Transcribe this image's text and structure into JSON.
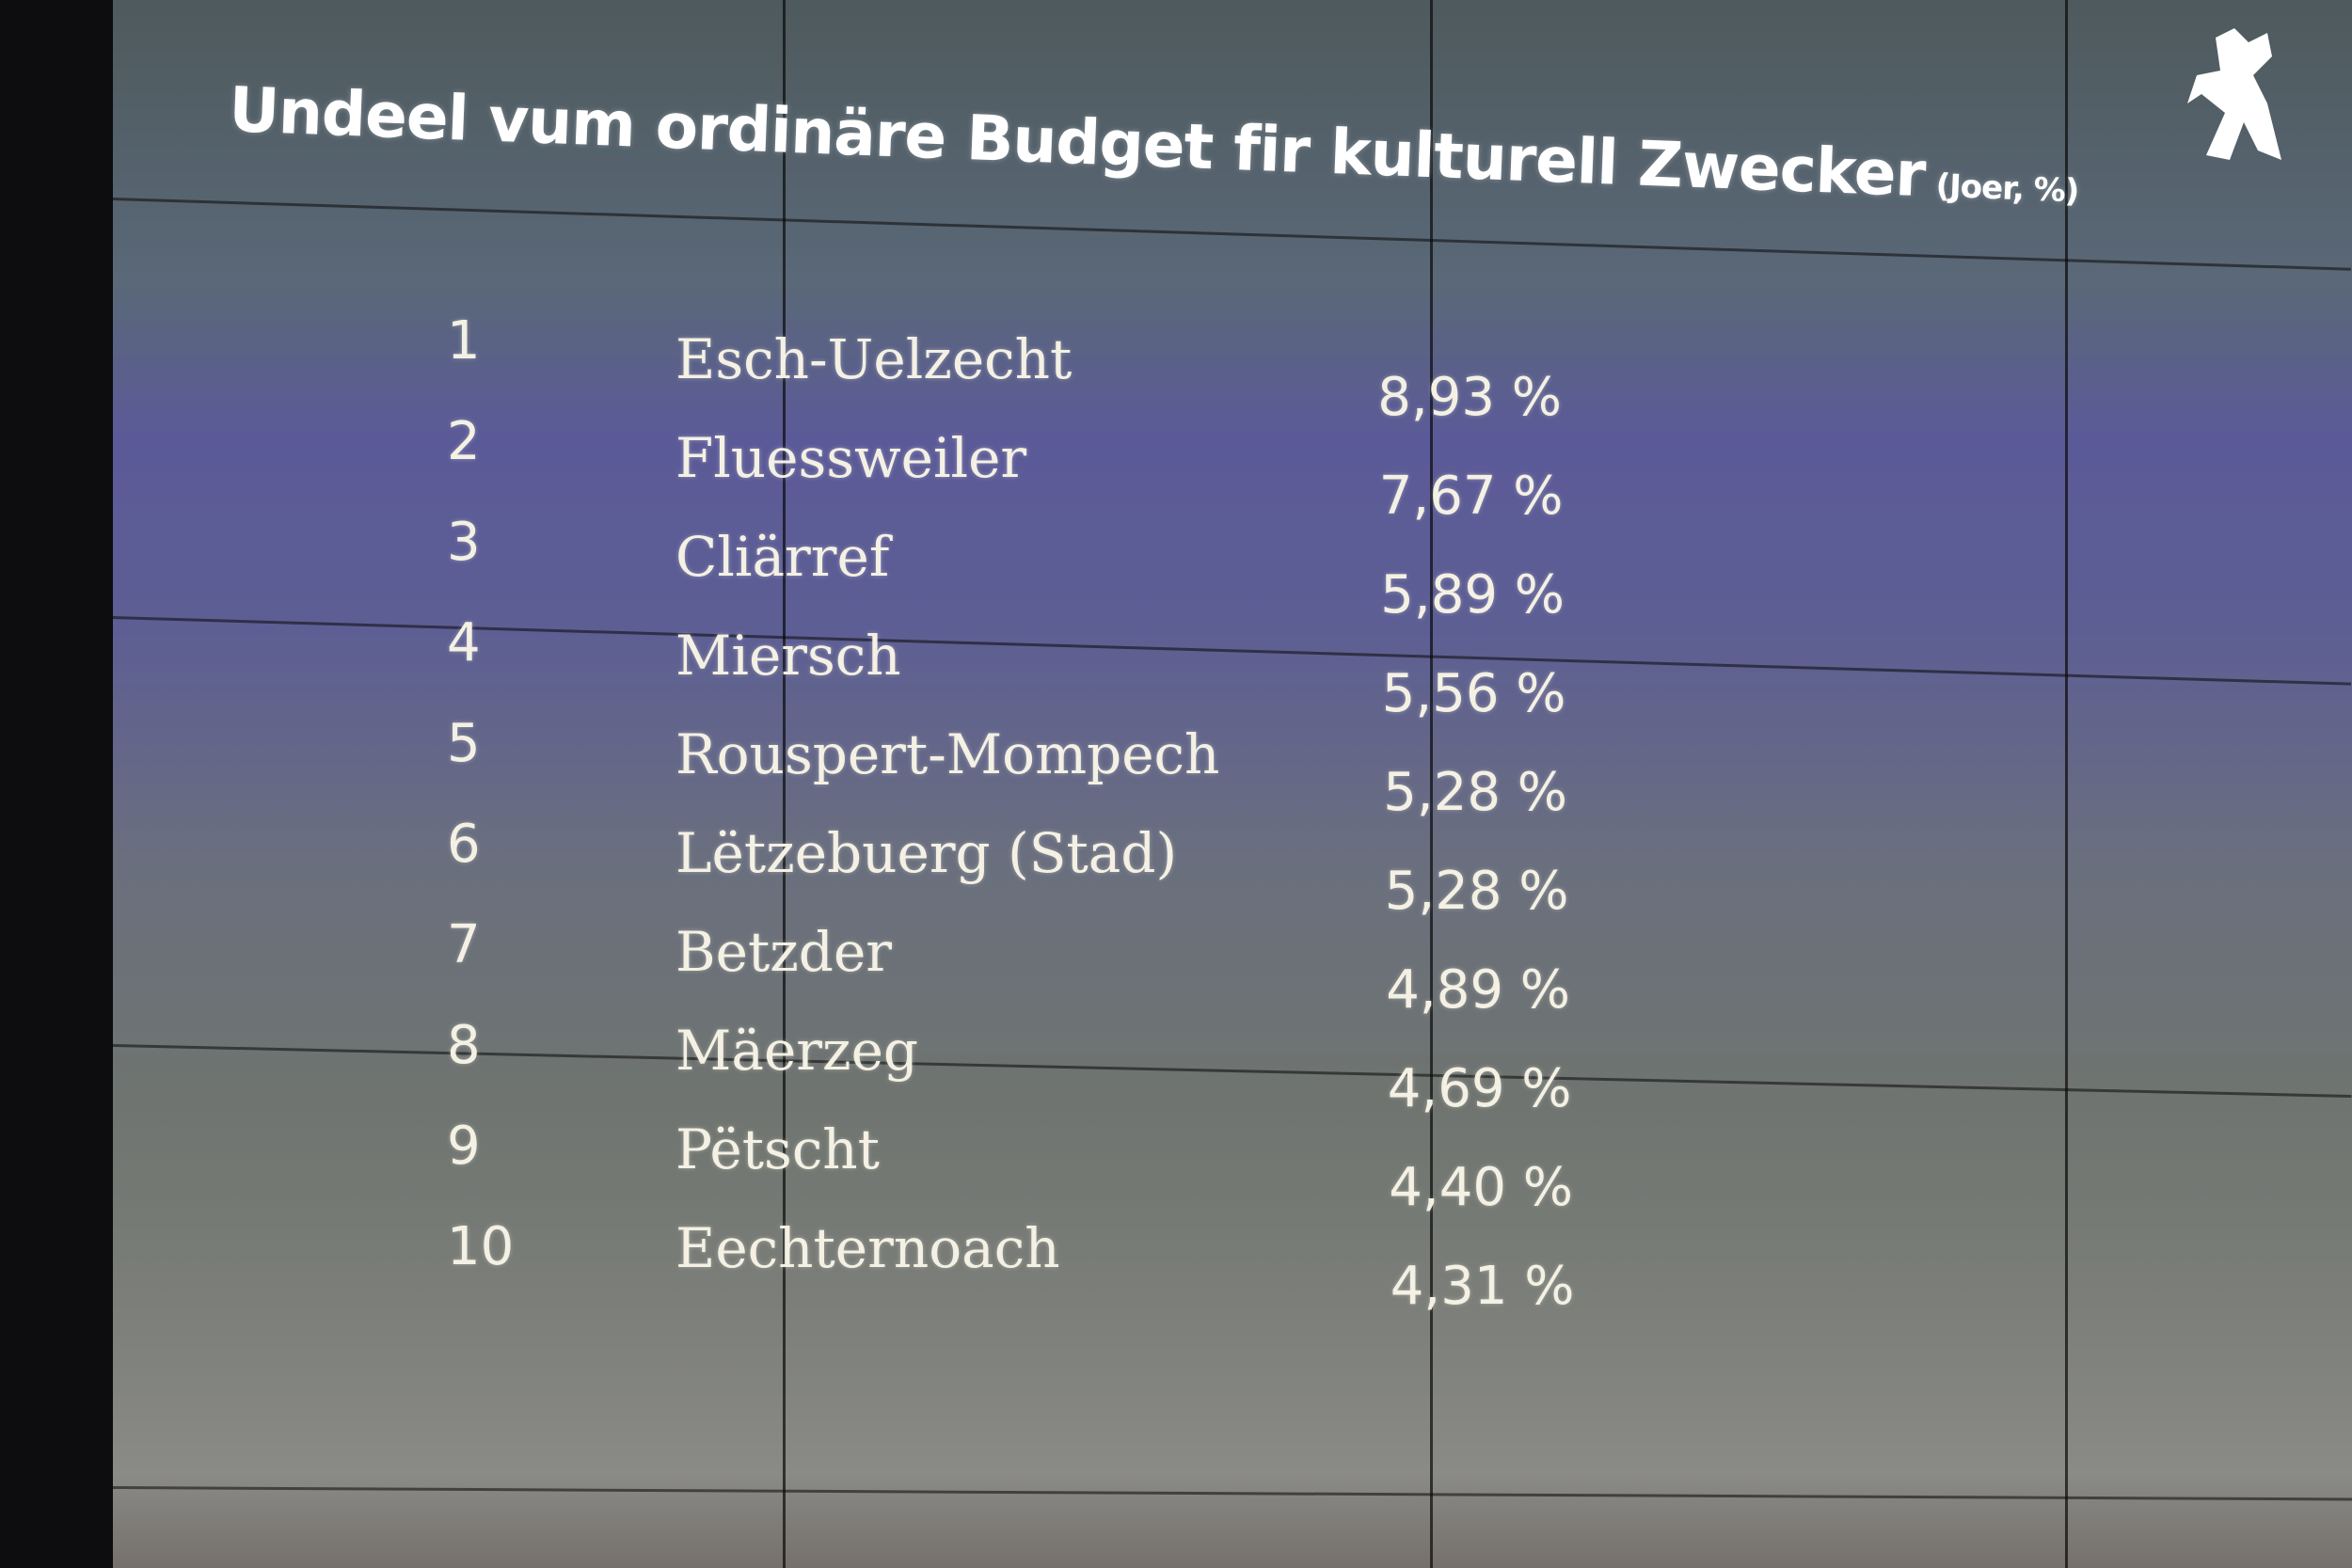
{
  "header": {
    "title": "Undeel vum ordinäre Budget fir kulturell Zwecker",
    "subtitle": "(Joer, %)"
  },
  "table": {
    "rows": [
      [
        "1",
        "Esch-Uelzecht",
        "8,93 %"
      ],
      [
        "2",
        "Fluessweiler",
        "7,67 %"
      ],
      [
        "3",
        "Cliärref",
        "5,89 %"
      ],
      [
        "4",
        "Miersch",
        "5,56 %"
      ],
      [
        "5",
        "Rouspert-Mompech",
        "5,28 %"
      ],
      [
        "6",
        "Lëtzebuerg (Stad)",
        "5,28 %"
      ],
      [
        "7",
        "Betzder",
        "4,89 %"
      ],
      [
        "8",
        "Mäerzeg",
        "4,69 %"
      ],
      [
        "9",
        "Pëtscht",
        "4,40 %"
      ],
      [
        "10",
        "Eechternoach",
        "4,31 %"
      ]
    ]
  }
}
